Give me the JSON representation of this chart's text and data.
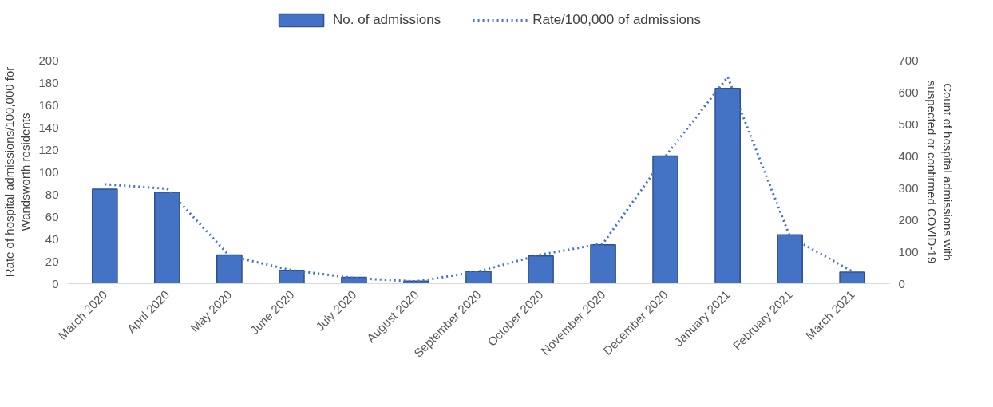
{
  "chart_data": {
    "type": "bar",
    "categories": [
      "March 2020",
      "April 2020",
      "May 2020",
      "June 2020",
      "July 2020",
      "August 2020",
      "September 2020",
      "October 2020",
      "November 2020",
      "December 2020",
      "January 2021",
      "February 2021",
      "March 2021"
    ],
    "series": [
      {
        "name": "No. of admissions",
        "axis": "y2",
        "color": "#4472c4",
        "values": [
          296,
          286,
          90,
          42,
          20,
          8,
          38,
          87,
          122,
          400,
          612,
          153,
          36
        ]
      },
      {
        "name": "Rate/100,000 of admissions",
        "type": "line",
        "line_style": "dotted",
        "color": "#4472c4",
        "values": [
          89,
          85,
          25,
          12,
          5,
          2,
          11,
          26,
          36,
          114,
          185,
          42,
          11
        ]
      }
    ],
    "ylabel": "Rate of hospital admissions/100,000 for\nWandsworth residents",
    "y2label": "Count of hospital admissions with\nsuspected or confirmed COVID-19",
    "ylim": [
      0,
      200
    ],
    "yticks": [
      0,
      20,
      40,
      60,
      80,
      100,
      120,
      140,
      160,
      180,
      200
    ],
    "y2lim": [
      0,
      700
    ],
    "y2ticks": [
      0,
      100,
      200,
      300,
      400,
      500,
      600,
      700
    ],
    "grid": false,
    "legend": "top",
    "marker": "none"
  }
}
